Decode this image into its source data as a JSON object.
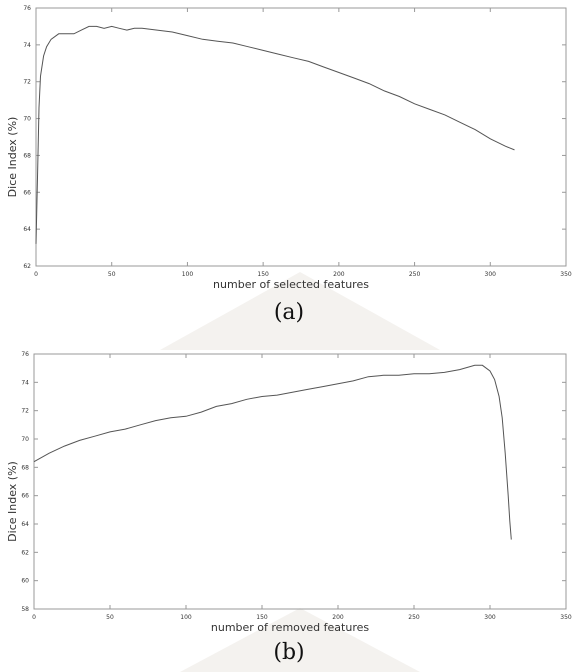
{
  "captions": {
    "a": "(a)",
    "b": "(b)"
  },
  "colors": {
    "line": "#555555",
    "axis": "#999999",
    "watermark": "#f4f2ef"
  },
  "chart_data": [
    {
      "type": "line",
      "title": "",
      "xlabel": "number of selected features",
      "ylabel": "Dice Index (%)",
      "xlim": [
        0,
        350
      ],
      "ylim": [
        62,
        76
      ],
      "xticks": [
        0,
        50,
        100,
        150,
        200,
        250,
        300,
        350
      ],
      "yticks": [
        62,
        64,
        66,
        68,
        70,
        72,
        74,
        76
      ],
      "grid": false,
      "series": [
        {
          "x": [
            0,
            1,
            2,
            3,
            5,
            7,
            10,
            15,
            20,
            25,
            30,
            35,
            40,
            45,
            50,
            55,
            60,
            65,
            70,
            80,
            90,
            100,
            110,
            120,
            130,
            140,
            150,
            160,
            170,
            180,
            190,
            200,
            210,
            220,
            230,
            240,
            250,
            260,
            270,
            280,
            290,
            300,
            310,
            316
          ],
          "y": [
            63.2,
            66.8,
            70.6,
            72.3,
            73.4,
            73.9,
            74.3,
            74.6,
            74.6,
            74.6,
            74.8,
            75.0,
            75.0,
            74.9,
            75.0,
            74.9,
            74.8,
            74.9,
            74.9,
            74.8,
            74.7,
            74.5,
            74.3,
            74.2,
            74.1,
            73.9,
            73.7,
            73.5,
            73.3,
            73.1,
            72.8,
            72.5,
            72.2,
            71.9,
            71.5,
            71.2,
            70.8,
            70.5,
            70.2,
            69.8,
            69.4,
            68.9,
            68.5,
            68.3
          ]
        }
      ]
    },
    {
      "type": "line",
      "title": "",
      "xlabel": "number of removed features",
      "ylabel": "Dice Index (%)",
      "xlim": [
        0,
        350
      ],
      "ylim": [
        58,
        76
      ],
      "xticks": [
        0,
        50,
        100,
        150,
        200,
        250,
        300,
        350
      ],
      "yticks": [
        58,
        60,
        62,
        64,
        66,
        68,
        70,
        72,
        74,
        76
      ],
      "grid": false,
      "series": [
        {
          "x": [
            0,
            10,
            20,
            30,
            40,
            50,
            60,
            70,
            80,
            90,
            100,
            110,
            120,
            130,
            140,
            150,
            160,
            170,
            180,
            190,
            200,
            210,
            220,
            230,
            240,
            250,
            260,
            270,
            280,
            290,
            295,
            300,
            303,
            306,
            308,
            310,
            312,
            313,
            314
          ],
          "y": [
            68.4,
            69.0,
            69.5,
            69.9,
            70.2,
            70.5,
            70.7,
            71.0,
            71.3,
            71.5,
            71.6,
            71.9,
            72.3,
            72.5,
            72.8,
            73.0,
            73.1,
            73.3,
            73.5,
            73.7,
            73.9,
            74.1,
            74.4,
            74.5,
            74.5,
            74.6,
            74.6,
            74.7,
            74.9,
            75.2,
            75.2,
            74.8,
            74.2,
            73.0,
            71.5,
            69.0,
            66.0,
            64.2,
            62.9
          ]
        }
      ]
    }
  ]
}
